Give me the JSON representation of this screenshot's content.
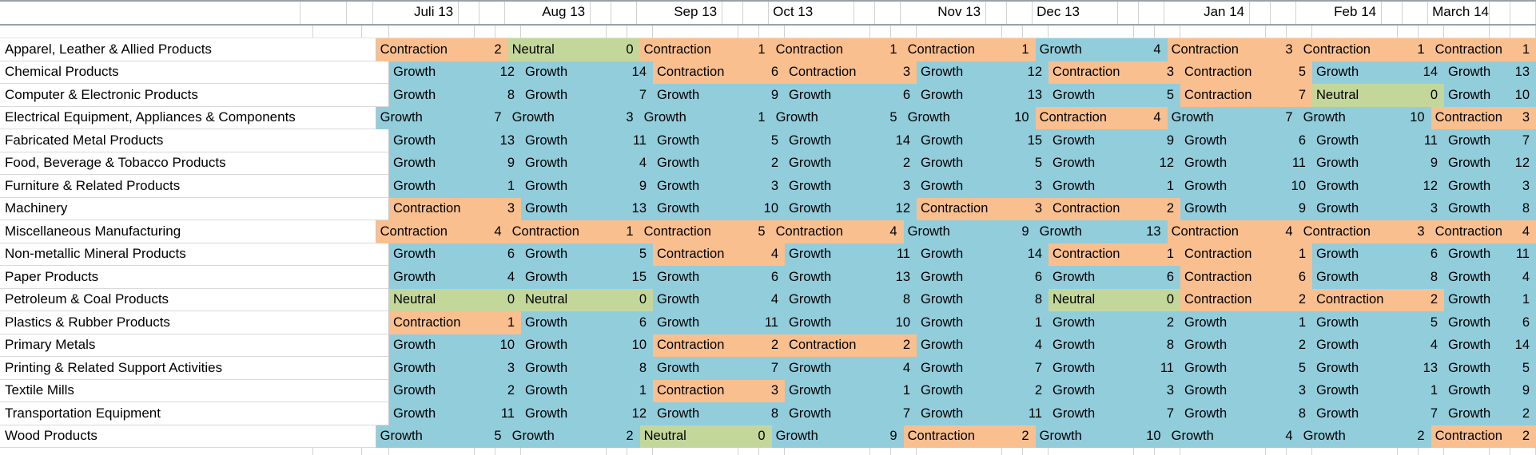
{
  "sheet": {
    "status_colors": {
      "Growth": "#92CDDC",
      "Contraction": "#FABF8F",
      "Neutral": "#C4D79B"
    },
    "months": [
      {
        "label": "Juli 13",
        "align": "right"
      },
      {
        "label": "Aug 13",
        "align": "right"
      },
      {
        "label": "Sep 13",
        "align": "right"
      },
      {
        "label": "Oct 13",
        "align": "left"
      },
      {
        "label": "Nov 13",
        "align": "right"
      },
      {
        "label": "Dec 13",
        "align": "left"
      },
      {
        "label": "Jan 14",
        "align": "right"
      },
      {
        "label": "Feb 14",
        "align": "right"
      },
      {
        "label": "March 14",
        "align": "left"
      }
    ],
    "rows": [
      {
        "category": "Apparel, Leather & Allied Products",
        "cells": [
          [
            "Contraction",
            2
          ],
          [
            "Neutral",
            0
          ],
          [
            "Contraction",
            1
          ],
          [
            "Contraction",
            1
          ],
          [
            "Contraction",
            1
          ],
          [
            "Growth",
            4
          ],
          [
            "Contraction",
            3
          ],
          [
            "Contraction",
            1
          ],
          [
            "Contraction",
            1
          ]
        ]
      },
      {
        "category": "Chemical Products",
        "cells": [
          [
            "Growth",
            12
          ],
          [
            "Growth",
            14
          ],
          [
            "Contraction",
            6
          ],
          [
            "Contraction",
            3
          ],
          [
            "Growth",
            12
          ],
          [
            "Contraction",
            3
          ],
          [
            "Contraction",
            5
          ],
          [
            "Growth",
            14
          ],
          [
            "Growth",
            13
          ]
        ]
      },
      {
        "category": "Computer & Electronic Products",
        "cells": [
          [
            "Growth",
            8
          ],
          [
            "Growth",
            7
          ],
          [
            "Growth",
            9
          ],
          [
            "Growth",
            6
          ],
          [
            "Growth",
            13
          ],
          [
            "Growth",
            5
          ],
          [
            "Contraction",
            7
          ],
          [
            "Neutral",
            0
          ],
          [
            "Growth",
            10
          ]
        ]
      },
      {
        "category": "Electrical Equipment, Appliances & Components",
        "cells": [
          [
            "Growth",
            7
          ],
          [
            "Growth",
            3
          ],
          [
            "Growth",
            1
          ],
          [
            "Growth",
            5
          ],
          [
            "Growth",
            10
          ],
          [
            "Contraction",
            4
          ],
          [
            "Growth",
            7
          ],
          [
            "Growth",
            10
          ],
          [
            "Contraction",
            3
          ]
        ]
      },
      {
        "category": "Fabricated Metal Products",
        "cells": [
          [
            "Growth",
            13
          ],
          [
            "Growth",
            11
          ],
          [
            "Growth",
            5
          ],
          [
            "Growth",
            14
          ],
          [
            "Growth",
            15
          ],
          [
            "Growth",
            9
          ],
          [
            "Growth",
            6
          ],
          [
            "Growth",
            11
          ],
          [
            "Growth",
            7
          ]
        ]
      },
      {
        "category": "Food, Beverage & Tobacco Products",
        "cells": [
          [
            "Growth",
            9
          ],
          [
            "Growth",
            4
          ],
          [
            "Growth",
            2
          ],
          [
            "Growth",
            2
          ],
          [
            "Growth",
            5
          ],
          [
            "Growth",
            12
          ],
          [
            "Growth",
            11
          ],
          [
            "Growth",
            9
          ],
          [
            "Growth",
            12
          ]
        ]
      },
      {
        "category": "Furniture & Related Products",
        "cells": [
          [
            "Growth",
            1
          ],
          [
            "Growth",
            9
          ],
          [
            "Growth",
            3
          ],
          [
            "Growth",
            3
          ],
          [
            "Growth",
            3
          ],
          [
            "Growth",
            1
          ],
          [
            "Growth",
            10
          ],
          [
            "Growth",
            12
          ],
          [
            "Growth",
            3
          ]
        ]
      },
      {
        "category": "Machinery",
        "cells": [
          [
            "Contraction",
            3
          ],
          [
            "Growth",
            13
          ],
          [
            "Growth",
            10
          ],
          [
            "Growth",
            12
          ],
          [
            "Contraction",
            3
          ],
          [
            "Contraction",
            2
          ],
          [
            "Growth",
            9
          ],
          [
            "Growth",
            3
          ],
          [
            "Growth",
            8
          ]
        ]
      },
      {
        "category": "Miscellaneous Manufacturing",
        "cells": [
          [
            "Contraction",
            4
          ],
          [
            "Contraction",
            1
          ],
          [
            "Contraction",
            5
          ],
          [
            "Contraction",
            4
          ],
          [
            "Growth",
            9
          ],
          [
            "Growth",
            13
          ],
          [
            "Contraction",
            4
          ],
          [
            "Contraction",
            3
          ],
          [
            "Contraction",
            4
          ]
        ]
      },
      {
        "category": "Non-metallic Mineral Products",
        "cells": [
          [
            "Growth",
            6
          ],
          [
            "Growth",
            5
          ],
          [
            "Contraction",
            4
          ],
          [
            "Growth",
            11
          ],
          [
            "Growth",
            14
          ],
          [
            "Contraction",
            1
          ],
          [
            "Contraction",
            1
          ],
          [
            "Growth",
            6
          ],
          [
            "Growth",
            11
          ]
        ]
      },
      {
        "category": "Paper Products",
        "cells": [
          [
            "Growth",
            4
          ],
          [
            "Growth",
            15
          ],
          [
            "Growth",
            6
          ],
          [
            "Growth",
            13
          ],
          [
            "Growth",
            6
          ],
          [
            "Growth",
            6
          ],
          [
            "Contraction",
            6
          ],
          [
            "Growth",
            8
          ],
          [
            "Growth",
            4
          ]
        ]
      },
      {
        "category": "Petroleum & Coal Products",
        "cells": [
          [
            "Neutral",
            0
          ],
          [
            "Neutral",
            0
          ],
          [
            "Growth",
            4
          ],
          [
            "Growth",
            8
          ],
          [
            "Growth",
            8
          ],
          [
            "Neutral",
            0
          ],
          [
            "Contraction",
            2
          ],
          [
            "Contraction",
            2
          ],
          [
            "Growth",
            1
          ]
        ]
      },
      {
        "category": "Plastics & Rubber Products",
        "cells": [
          [
            "Contraction",
            1
          ],
          [
            "Growth",
            6
          ],
          [
            "Growth",
            11
          ],
          [
            "Growth",
            10
          ],
          [
            "Growth",
            1
          ],
          [
            "Growth",
            2
          ],
          [
            "Growth",
            1
          ],
          [
            "Growth",
            5
          ],
          [
            "Growth",
            6
          ]
        ]
      },
      {
        "category": "Primary Metals",
        "cells": [
          [
            "Growth",
            10
          ],
          [
            "Growth",
            10
          ],
          [
            "Contraction",
            2
          ],
          [
            "Contraction",
            2
          ],
          [
            "Growth",
            4
          ],
          [
            "Growth",
            8
          ],
          [
            "Growth",
            2
          ],
          [
            "Growth",
            4
          ],
          [
            "Growth",
            14
          ]
        ]
      },
      {
        "category": "Printing & Related Support Activities",
        "cells": [
          [
            "Growth",
            3
          ],
          [
            "Growth",
            8
          ],
          [
            "Growth",
            7
          ],
          [
            "Growth",
            4
          ],
          [
            "Growth",
            7
          ],
          [
            "Growth",
            11
          ],
          [
            "Growth",
            5
          ],
          [
            "Growth",
            13
          ],
          [
            "Growth",
            5
          ]
        ]
      },
      {
        "category": "Textile Mills",
        "cells": [
          [
            "Growth",
            2
          ],
          [
            "Growth",
            1
          ],
          [
            "Contraction",
            3
          ],
          [
            "Growth",
            1
          ],
          [
            "Growth",
            2
          ],
          [
            "Growth",
            3
          ],
          [
            "Growth",
            3
          ],
          [
            "Growth",
            1
          ],
          [
            "Growth",
            9
          ]
        ]
      },
      {
        "category": "Transportation Equipment",
        "cells": [
          [
            "Growth",
            11
          ],
          [
            "Growth",
            12
          ],
          [
            "Growth",
            8
          ],
          [
            "Growth",
            7
          ],
          [
            "Growth",
            11
          ],
          [
            "Growth",
            7
          ],
          [
            "Growth",
            8
          ],
          [
            "Growth",
            7
          ],
          [
            "Growth",
            2
          ]
        ]
      },
      {
        "category": "Wood Products",
        "cells": [
          [
            "Growth",
            5
          ],
          [
            "Growth",
            2
          ],
          [
            "Neutral",
            0
          ],
          [
            "Growth",
            9
          ],
          [
            "Contraction",
            2
          ],
          [
            "Growth",
            10
          ],
          [
            "Growth",
            4
          ],
          [
            "Growth",
            2
          ],
          [
            "Contraction",
            2
          ]
        ]
      }
    ]
  }
}
